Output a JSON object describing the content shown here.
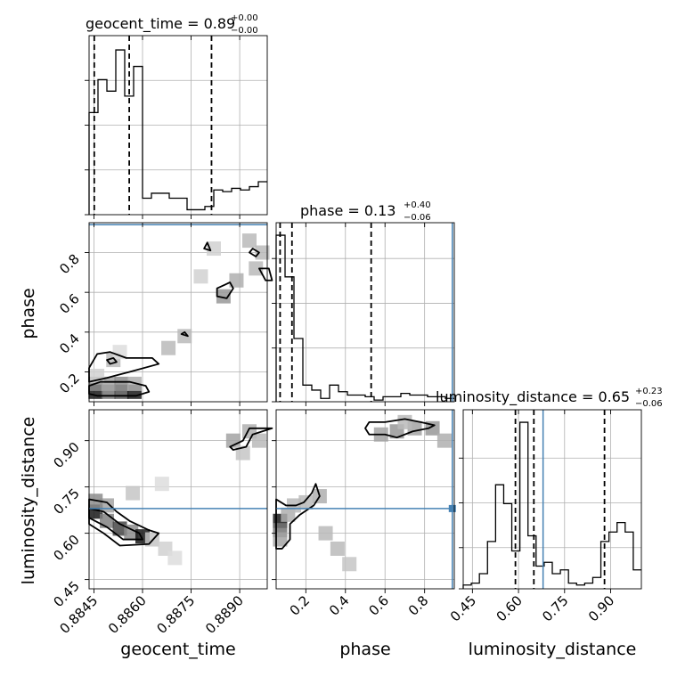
{
  "chart_data": {
    "type": "corner",
    "parameters": [
      "geocent_time",
      "phase",
      "luminosity_distance"
    ],
    "axis_labels": {
      "x": [
        "geocent_time",
        "phase",
        "luminosity_distance"
      ],
      "y": [
        "phase",
        "luminosity_distance"
      ]
    },
    "titles": [
      {
        "param": "geocent_time",
        "text": "geocent_time = 0.89",
        "sup": "+0.00",
        "sub": "−0.00"
      },
      {
        "param": "phase",
        "text": "phase = 0.13",
        "sup": "+0.40",
        "sub": "−0.06"
      },
      {
        "param": "luminosity_distance",
        "text": "luminosity_distance = 0.65",
        "sup": "+0.23",
        "sub": "−0.06"
      }
    ],
    "ranges": {
      "geocent_time": [
        0.88435,
        0.88985
      ],
      "phase": [
        0.05,
        0.95
      ],
      "luminosity_distance": [
        0.42,
        1.0
      ]
    },
    "ticks": {
      "geocent_time": {
        "values": [
          0.8845,
          0.886,
          0.8875,
          0.889
        ],
        "labels": [
          "0.8845",
          "0.8860",
          "0.8875",
          "0.8890"
        ]
      },
      "phase_x": {
        "values": [
          0.2,
          0.4,
          0.6,
          0.8
        ],
        "labels": [
          "0.2",
          "0.4",
          "0.6",
          "0.8"
        ]
      },
      "phase_y": {
        "values": [
          0.2,
          0.4,
          0.6,
          0.8
        ],
        "labels": [
          "0.2",
          "0.4",
          "0.6",
          "0.8"
        ]
      },
      "luminosity_distance": {
        "values": [
          0.45,
          0.6,
          0.75,
          0.9
        ],
        "labels": [
          "0.45",
          "0.60",
          "0.75",
          "0.90"
        ]
      }
    },
    "truths": {
      "phase": 0.94,
      "luminosity_distance": 0.68
    },
    "quantiles": {
      "geocent_time": [
        0.88451,
        0.88559,
        0.88813
      ],
      "phase": [
        0.07,
        0.13,
        0.53
      ],
      "luminosity_distance": [
        0.59,
        0.65,
        0.88
      ]
    },
    "histograms": {
      "geocent_time": {
        "range": [
          0.88435,
          0.88985
        ],
        "counts": [
          0.62,
          0.82,
          0.75,
          1.0,
          0.72,
          0.9,
          0.1,
          0.13,
          0.13,
          0.1,
          0.1,
          0.03,
          0.03,
          0.05,
          0.15,
          0.14,
          0.16,
          0.15,
          0.17,
          0.2
        ]
      },
      "phase": {
        "range": [
          0.05,
          0.95
        ],
        "counts": [
          1.0,
          0.75,
          0.38,
          0.1,
          0.07,
          0.02,
          0.1,
          0.06,
          0.04,
          0.04,
          0.03,
          0.01,
          0.03,
          0.03,
          0.05,
          0.04,
          0.04,
          0.03,
          0.03,
          0.02
        ]
      },
      "luminosity_distance": {
        "range": [
          0.42,
          1.0
        ],
        "counts": [
          0.02,
          0.03,
          0.08,
          0.25,
          0.55,
          0.45,
          0.2,
          0.88,
          0.28,
          0.12,
          0.14,
          0.08,
          0.1,
          0.03,
          0.02,
          0.03,
          0.06,
          0.25,
          0.3,
          0.35,
          0.3,
          0.1
        ]
      }
    },
    "density": {
      "phase_vs_geocent_time": [
        {
          "x": 0.88455,
          "y": 0.1,
          "w": 1.0
        },
        {
          "x": 0.88495,
          "y": 0.1,
          "w": 0.6
        },
        {
          "x": 0.88535,
          "y": 0.1,
          "w": 0.75
        },
        {
          "x": 0.88575,
          "y": 0.1,
          "w": 1.0
        },
        {
          "x": 0.88455,
          "y": 0.14,
          "w": 0.5
        },
        {
          "x": 0.88495,
          "y": 0.14,
          "w": 0.4
        },
        {
          "x": 0.88535,
          "y": 0.14,
          "w": 0.5
        },
        {
          "x": 0.88575,
          "y": 0.14,
          "w": 0.35
        },
        {
          "x": 0.8846,
          "y": 0.18,
          "w": 0.2
        },
        {
          "x": 0.8851,
          "y": 0.26,
          "w": 0.3
        },
        {
          "x": 0.8853,
          "y": 0.3,
          "w": 0.15
        },
        {
          "x": 0.8868,
          "y": 0.32,
          "w": 0.3
        },
        {
          "x": 0.8873,
          "y": 0.38,
          "w": 0.3
        },
        {
          "x": 0.8885,
          "y": 0.58,
          "w": 0.45
        },
        {
          "x": 0.8889,
          "y": 0.66,
          "w": 0.35
        },
        {
          "x": 0.8895,
          "y": 0.72,
          "w": 0.3
        },
        {
          "x": 0.8893,
          "y": 0.86,
          "w": 0.3
        },
        {
          "x": 0.8882,
          "y": 0.82,
          "w": 0.2
        },
        {
          "x": 0.8897,
          "y": 0.8,
          "w": 0.3
        },
        {
          "x": 0.8878,
          "y": 0.68,
          "w": 0.2
        }
      ],
      "luminosity_distance_vs_geocent_time": [
        {
          "x": 0.88455,
          "y": 0.67,
          "w": 1.0
        },
        {
          "x": 0.8849,
          "y": 0.64,
          "w": 0.55
        },
        {
          "x": 0.8853,
          "y": 0.615,
          "w": 0.8
        },
        {
          "x": 0.88565,
          "y": 0.605,
          "w": 0.5
        },
        {
          "x": 0.886,
          "y": 0.59,
          "w": 1.0
        },
        {
          "x": 0.8849,
          "y": 0.69,
          "w": 0.4
        },
        {
          "x": 0.88455,
          "y": 0.705,
          "w": 0.5
        },
        {
          "x": 0.8863,
          "y": 0.58,
          "w": 0.25
        },
        {
          "x": 0.8867,
          "y": 0.55,
          "w": 0.2
        },
        {
          "x": 0.887,
          "y": 0.52,
          "w": 0.15
        },
        {
          "x": 0.8857,
          "y": 0.73,
          "w": 0.25
        },
        {
          "x": 0.8866,
          "y": 0.76,
          "w": 0.15
        },
        {
          "x": 0.8888,
          "y": 0.9,
          "w": 0.4
        },
        {
          "x": 0.8893,
          "y": 0.93,
          "w": 0.35
        },
        {
          "x": 0.8896,
          "y": 0.9,
          "w": 0.3
        },
        {
          "x": 0.8891,
          "y": 0.86,
          "w": 0.25
        }
      ],
      "luminosity_distance_vs_phase": [
        {
          "x": 0.07,
          "y": 0.64,
          "w": 1.0
        },
        {
          "x": 0.07,
          "y": 0.61,
          "w": 0.6
        },
        {
          "x": 0.07,
          "y": 0.58,
          "w": 0.4
        },
        {
          "x": 0.11,
          "y": 0.66,
          "w": 0.35
        },
        {
          "x": 0.14,
          "y": 0.69,
          "w": 0.3
        },
        {
          "x": 0.2,
          "y": 0.7,
          "w": 0.3
        },
        {
          "x": 0.27,
          "y": 0.72,
          "w": 0.35
        },
        {
          "x": 0.3,
          "y": 0.6,
          "w": 0.3
        },
        {
          "x": 0.36,
          "y": 0.55,
          "w": 0.3
        },
        {
          "x": 0.42,
          "y": 0.5,
          "w": 0.25
        },
        {
          "x": 0.58,
          "y": 0.92,
          "w": 0.4
        },
        {
          "x": 0.66,
          "y": 0.93,
          "w": 0.45
        },
        {
          "x": 0.75,
          "y": 0.94,
          "w": 0.4
        },
        {
          "x": 0.84,
          "y": 0.94,
          "w": 0.45
        },
        {
          "x": 0.9,
          "y": 0.9,
          "w": 0.35
        },
        {
          "x": 0.7,
          "y": 0.96,
          "w": 0.3
        }
      ]
    },
    "contours": {
      "phase_vs_geocent_time": [
        [
          [
            0.88435,
            0.22
          ],
          [
            0.8846,
            0.29
          ],
          [
            0.885,
            0.3
          ],
          [
            0.8855,
            0.27
          ],
          [
            0.8863,
            0.27
          ],
          [
            0.8865,
            0.24
          ],
          [
            0.8856,
            0.2
          ],
          [
            0.8849,
            0.17
          ],
          [
            0.88435,
            0.15
          ]
        ],
        [
          [
            0.88435,
            0.13
          ],
          [
            0.8847,
            0.15
          ],
          [
            0.8856,
            0.15
          ],
          [
            0.8861,
            0.13
          ],
          [
            0.8862,
            0.1
          ],
          [
            0.8858,
            0.08
          ],
          [
            0.8846,
            0.08
          ],
          [
            0.88435,
            0.09
          ]
        ],
        [
          [
            0.8849,
            0.26
          ],
          [
            0.8851,
            0.27
          ],
          [
            0.8852,
            0.25
          ],
          [
            0.885,
            0.24
          ]
        ],
        [
          [
            0.8872,
            0.39
          ],
          [
            0.8873,
            0.4
          ],
          [
            0.8874,
            0.38
          ]
        ],
        [
          [
            0.8879,
            0.82
          ],
          [
            0.888,
            0.85
          ],
          [
            0.8881,
            0.81
          ]
        ],
        [
          [
            0.8883,
            0.62
          ],
          [
            0.8887,
            0.65
          ],
          [
            0.8888,
            0.62
          ],
          [
            0.8886,
            0.57
          ],
          [
            0.8883,
            0.58
          ]
        ],
        [
          [
            0.8896,
            0.72
          ],
          [
            0.8898,
            0.66
          ],
          [
            0.89,
            0.66
          ],
          [
            0.8899,
            0.72
          ]
        ],
        [
          [
            0.8893,
            0.8
          ],
          [
            0.8894,
            0.82
          ],
          [
            0.8896,
            0.8
          ],
          [
            0.8895,
            0.78
          ]
        ]
      ],
      "luminosity_distance_vs_geocent_time": [
        [
          [
            0.88435,
            0.71
          ],
          [
            0.8849,
            0.7
          ],
          [
            0.8852,
            0.67
          ],
          [
            0.8856,
            0.64
          ],
          [
            0.8862,
            0.61
          ],
          [
            0.8865,
            0.6
          ],
          [
            0.8862,
            0.565
          ],
          [
            0.8853,
            0.56
          ],
          [
            0.8848,
            0.6
          ],
          [
            0.88435,
            0.63
          ]
        ],
        [
          [
            0.88435,
            0.68
          ],
          [
            0.8848,
            0.67
          ],
          [
            0.8853,
            0.63
          ],
          [
            0.8859,
            0.6
          ],
          [
            0.886,
            0.58
          ],
          [
            0.8854,
            0.58
          ],
          [
            0.8849,
            0.62
          ],
          [
            0.88435,
            0.65
          ]
        ],
        [
          [
            0.8887,
            0.88
          ],
          [
            0.8891,
            0.9
          ],
          [
            0.8893,
            0.94
          ],
          [
            0.89,
            0.94
          ],
          [
            0.8894,
            0.92
          ],
          [
            0.8892,
            0.88
          ],
          [
            0.8888,
            0.87
          ]
        ]
      ],
      "luminosity_distance_vs_phase": [
        [
          [
            0.05,
            0.71
          ],
          [
            0.1,
            0.69
          ],
          [
            0.15,
            0.69
          ],
          [
            0.19,
            0.7
          ],
          [
            0.23,
            0.73
          ],
          [
            0.25,
            0.76
          ],
          [
            0.27,
            0.72
          ],
          [
            0.24,
            0.69
          ],
          [
            0.17,
            0.66
          ],
          [
            0.12,
            0.63
          ],
          [
            0.12,
            0.58
          ],
          [
            0.08,
            0.55
          ],
          [
            0.05,
            0.55
          ]
        ],
        [
          [
            0.5,
            0.94
          ],
          [
            0.52,
            0.92
          ],
          [
            0.6,
            0.92
          ],
          [
            0.66,
            0.91
          ],
          [
            0.74,
            0.93
          ],
          [
            0.82,
            0.94
          ],
          [
            0.85,
            0.95
          ],
          [
            0.78,
            0.96
          ],
          [
            0.7,
            0.97
          ],
          [
            0.6,
            0.96
          ],
          [
            0.52,
            0.96
          ]
        ]
      ]
    }
  }
}
